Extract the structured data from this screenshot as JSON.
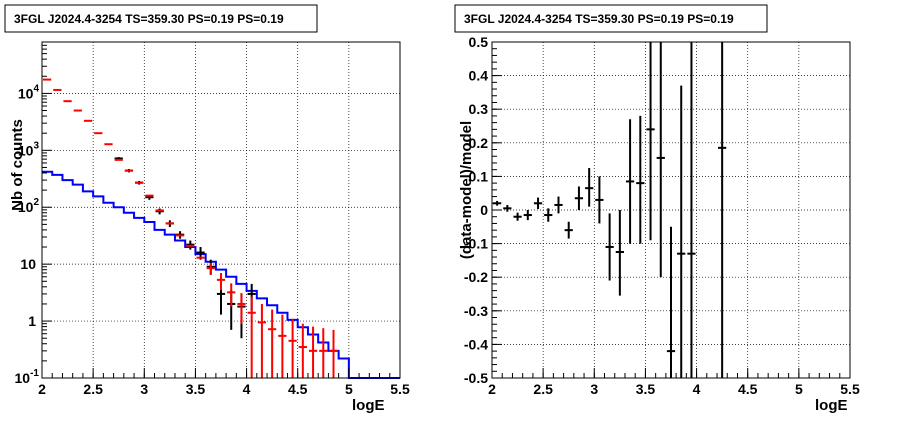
{
  "chart_data": [
    {
      "type": "scatter",
      "title": "3FGL J2024.4-3254 TS=359.30 PS=0.19 PS=0.19",
      "xlabel": "logE",
      "ylabel": "Nb of counts",
      "xlim": [
        2,
        5.5
      ],
      "ylim": [
        0.1,
        80000
      ],
      "yscale": "log",
      "grid": true,
      "x_ticks": [
        "2",
        "2.5",
        "3",
        "3.5",
        "4",
        "4.5",
        "5",
        "5.5"
      ],
      "y_ticks": [
        {
          "v": 0.1,
          "label": "10",
          "exp": "-1"
        },
        {
          "v": 1,
          "label": "1",
          "exp": ""
        },
        {
          "v": 10,
          "label": "10",
          "exp": ""
        },
        {
          "v": 100,
          "label": "10",
          "exp": "2"
        },
        {
          "v": 1000,
          "label": "10",
          "exp": "3"
        },
        {
          "v": 10000,
          "label": "10",
          "exp": "4"
        }
      ],
      "x_bin_width": 0.1,
      "series": [
        {
          "color": "#0000ff",
          "style": "step",
          "x": [
            2.05,
            2.15,
            2.25,
            2.35,
            2.45,
            2.55,
            2.65,
            2.75,
            2.85,
            2.95,
            3.05,
            3.15,
            3.25,
            3.35,
            3.45,
            3.55,
            3.65,
            3.75,
            3.85,
            3.95,
            4.05,
            4.15,
            4.25,
            4.35,
            4.45,
            4.55,
            4.65,
            4.75,
            4.85,
            4.95,
            5.05,
            5.15,
            5.25,
            5.35,
            5.45
          ],
          "y": [
            420,
            370,
            300,
            250,
            190,
            155,
            120,
            100,
            80,
            65,
            55,
            40,
            33,
            26,
            20,
            15,
            11,
            8,
            6,
            4.5,
            3.4,
            2.5,
            1.9,
            1.4,
            1.05,
            0.78,
            0.58,
            0.42,
            0.3,
            0.22,
            0.1,
            0.1,
            0.1,
            0.1,
            0.1
          ]
        },
        {
          "color": "#000000",
          "style": "errorbar",
          "x": [
            2.75,
            2.85,
            2.95,
            3.05,
            3.15,
            3.25,
            3.35,
            3.45,
            3.55,
            3.65,
            3.75,
            3.85,
            3.95,
            4.05
          ],
          "y": [
            720,
            440,
            270,
            150,
            85,
            52,
            33,
            22,
            16,
            9,
            3,
            2,
            1.8,
            3
          ],
          "ylo": [
            680,
            410,
            250,
            135,
            75,
            45,
            28,
            18,
            12,
            6.5,
            1.3,
            0.7,
            0.5,
            1.5
          ],
          "yhi": [
            760,
            470,
            290,
            165,
            95,
            59,
            38,
            26,
            20,
            12,
            5,
            3.5,
            3,
            4.5
          ]
        },
        {
          "color": "#ff0000",
          "style": "errorbar",
          "x": [
            2.05,
            2.15,
            2.25,
            2.35,
            2.45,
            2.55,
            2.65,
            2.75,
            2.85,
            2.95,
            3.05,
            3.15,
            3.25,
            3.35,
            3.45,
            3.55,
            3.65,
            3.75,
            3.85,
            3.95,
            4.05,
            4.15,
            4.25,
            4.35,
            4.45,
            4.55,
            4.65,
            4.75,
            4.85
          ],
          "y": [
            17500,
            11500,
            7300,
            5000,
            3300,
            2000,
            1280,
            680,
            440,
            270,
            160,
            88,
            52,
            32,
            21,
            13,
            8.5,
            5.3,
            3.2,
            2,
            1.4,
            0.95,
            0.72,
            0.55,
            0.45,
            0.35,
            0.3,
            0.3,
            0.3
          ],
          "ylo": [
            17500,
            11500,
            7300,
            5000,
            3300,
            2000,
            1280,
            680,
            440,
            270,
            160,
            88,
            52,
            32,
            21,
            13,
            6.5,
            3.5,
            1.8,
            0.9,
            0.1,
            0.1,
            0.1,
            0.1,
            0.1,
            0.1,
            0.1,
            0.1,
            0.1
          ],
          "yhi": [
            17500,
            11500,
            7300,
            5000,
            3300,
            2000,
            1280,
            680,
            440,
            270,
            160,
            88,
            52,
            32,
            21,
            13,
            10.5,
            7,
            4.6,
            3.1,
            2.7,
            2,
            1.6,
            1.3,
            1.1,
            0.9,
            0.8,
            0.75,
            0.7
          ]
        }
      ]
    },
    {
      "type": "scatter",
      "title": "3FGL J2024.4-3254 TS=359.30 PS=0.19 PS=0.19",
      "xlabel": "logE",
      "ylabel": "(data-model)/model",
      "xlim": [
        2,
        5.5
      ],
      "ylim": [
        -0.5,
        0.5
      ],
      "yscale": "linear",
      "grid": true,
      "x_ticks": [
        "2",
        "2.5",
        "3",
        "3.5",
        "4",
        "4.5",
        "5",
        "5.5"
      ],
      "y_ticks": [
        "-0.5",
        "-0.4",
        "-0.3",
        "-0.2",
        "-0.1",
        "0",
        "0.1",
        "0.2",
        "0.3",
        "0.4",
        "0.5"
      ],
      "x_bin_width": 0.1,
      "series": [
        {
          "color": "#000000",
          "style": "errorbar",
          "x": [
            2.05,
            2.15,
            2.25,
            2.35,
            2.45,
            2.55,
            2.65,
            2.75,
            2.85,
            2.95,
            3.05,
            3.15,
            3.25,
            3.35,
            3.45,
            3.55,
            3.65,
            3.75,
            3.85,
            3.95,
            4.25
          ],
          "y": [
            0.02,
            0.005,
            -0.02,
            -0.015,
            0.02,
            -0.015,
            0.015,
            -0.06,
            0.035,
            0.065,
            0.03,
            -0.11,
            -0.125,
            0.085,
            0.08,
            0.24,
            0.155,
            -0.42,
            -0.13,
            -0.13,
            0.185
          ],
          "ylo": [
            0.013,
            -0.005,
            -0.032,
            -0.03,
            0.003,
            -0.035,
            -0.01,
            -0.085,
            0.0,
            0.01,
            -0.04,
            -0.21,
            -0.255,
            -0.1,
            -0.1,
            -0.09,
            -0.2,
            -0.5,
            -0.5,
            -0.5,
            -0.5
          ],
          "yhi": [
            0.027,
            0.015,
            -0.008,
            0.0,
            0.037,
            0.005,
            0.04,
            -0.035,
            0.07,
            0.125,
            0.1,
            -0.01,
            0.0,
            0.27,
            0.28,
            0.5,
            0.5,
            -0.05,
            0.37,
            0.5,
            0.5
          ]
        }
      ]
    }
  ]
}
